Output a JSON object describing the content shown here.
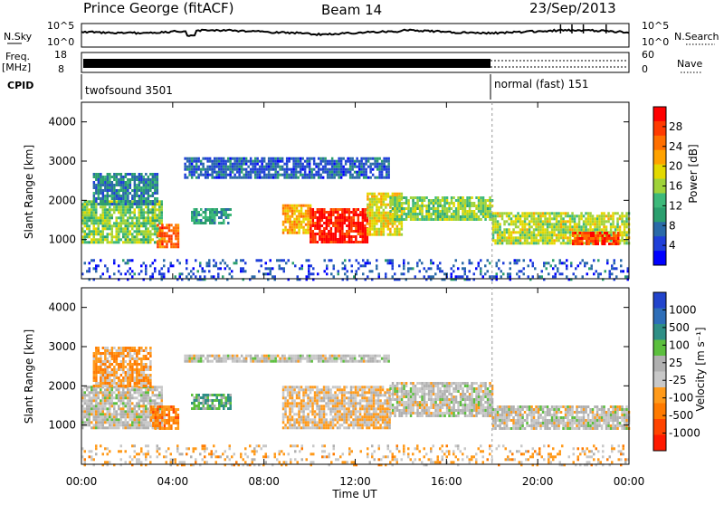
{
  "header": {
    "station": "Prince George (fitACF)",
    "beam": "Beam 14",
    "date": "23/Sep/2013"
  },
  "sky_panel": {
    "left_label": "N.Sky",
    "left_ticks": [
      "10^5",
      "10^0"
    ],
    "right_ticks": [
      "10^5",
      "10^0"
    ],
    "right_label": "N.Search"
  },
  "freq_panel": {
    "left_label_line1": "Freq.",
    "left_label_line2": "[MHz]",
    "left_ticks": [
      "18",
      "8"
    ],
    "right_ticks": [
      "60",
      "0"
    ],
    "right_label": "Nave"
  },
  "cpid_panel": {
    "label": "CPID",
    "modes": [
      {
        "name": "twofsound 3501",
        "start": "00:00",
        "end": "18:00"
      },
      {
        "name": "normal (fast) 151",
        "start": "18:00",
        "end": "24:00"
      }
    ]
  },
  "power_panel": {
    "ylabel": "Slant Range [km]",
    "colorbar_label": "Power [dB]",
    "colorbar_ticks": [
      "28",
      "24",
      "20",
      "16",
      "12",
      "8",
      "4"
    ],
    "colorbar_colors": [
      "#ff0000",
      "#ff3a00",
      "#ff6f00",
      "#ffa200",
      "#e3d900",
      "#9fd33a",
      "#3db97a",
      "#2b9f6e",
      "#2a6aa8",
      "#1f3fd9",
      "#0000ff"
    ]
  },
  "velocity_panel": {
    "ylabel": "Slant Range [km]",
    "colorbar_label": "Velocity [m s⁻¹]",
    "colorbar_ticks": [
      "1000",
      "500",
      "100",
      "25",
      "-25",
      "-100",
      "-500",
      "-1000"
    ],
    "colorbar_colors": [
      "#2244cc",
      "#2e6eb8",
      "#2f8f86",
      "#5cbf3e",
      "#b0b0b0",
      "#c8c8c8",
      "#ff9a1a",
      "#ff7a00",
      "#ff4400",
      "#ff1a00"
    ]
  },
  "x_axis": {
    "title": "Time UT",
    "tick_labels": [
      "00:00",
      "04:00",
      "08:00",
      "12:00",
      "16:00",
      "20:00",
      "00:00"
    ]
  },
  "chart_data": {
    "type": "heatmap",
    "title": "Prince George (fitACF)",
    "x_range": [
      "00:00",
      "24:00"
    ],
    "y_range_km": [
      0,
      4500
    ],
    "y_ticks_km": [
      1000,
      2000,
      3000,
      4000
    ],
    "panels": [
      {
        "name": "Power [dB]",
        "color_range": [
          0,
          30
        ],
        "regions": [
          {
            "t0": 0.0,
            "t1": 3.5,
            "r0": 900,
            "r1": 2000,
            "value": 14
          },
          {
            "t0": 0.5,
            "t1": 3.3,
            "r0": 1900,
            "r1": 2700,
            "value": 8
          },
          {
            "t0": 3.3,
            "t1": 4.2,
            "r0": 800,
            "r1": 1400,
            "value": 24
          },
          {
            "t0": 4.8,
            "t1": 6.5,
            "r0": 1400,
            "r1": 1800,
            "value": 10
          },
          {
            "t0": 4.5,
            "t1": 13.5,
            "r0": 2600,
            "r1": 3100,
            "value": 6
          },
          {
            "t0": 8.8,
            "t1": 10.0,
            "r0": 1200,
            "r1": 1900,
            "value": 20
          },
          {
            "t0": 10.0,
            "t1": 12.5,
            "r0": 900,
            "r1": 1800,
            "value": 28
          },
          {
            "t0": 12.5,
            "t1": 14.0,
            "r0": 1100,
            "r1": 2200,
            "value": 18
          },
          {
            "t0": 13.5,
            "t1": 18.0,
            "r0": 1500,
            "r1": 2100,
            "value": 14
          },
          {
            "t0": 18.0,
            "t1": 24.0,
            "r0": 900,
            "r1": 1700,
            "value": 16
          },
          {
            "t0": 21.5,
            "t1": 23.5,
            "r0": 900,
            "r1": 1200,
            "value": 26
          },
          {
            "t0": 0.0,
            "t1": 24.0,
            "r0": 0,
            "r1": 500,
            "value": 5
          }
        ]
      },
      {
        "name": "Velocity [m s-1]",
        "color_range": [
          -1000,
          1000
        ],
        "regions": [
          {
            "t0": 0.0,
            "t1": 3.5,
            "r0": 900,
            "r1": 2000,
            "value": 0
          },
          {
            "t0": 0.5,
            "t1": 3.0,
            "r0": 2000,
            "r1": 3000,
            "value": -300
          },
          {
            "t0": 3.0,
            "t1": 4.2,
            "r0": 900,
            "r1": 1500,
            "value": -400
          },
          {
            "t0": 4.8,
            "t1": 6.5,
            "r0": 1400,
            "r1": 1800,
            "value": 300
          },
          {
            "t0": 4.5,
            "t1": 13.5,
            "r0": 2600,
            "r1": 2800,
            "value": 0
          },
          {
            "t0": 8.8,
            "t1": 13.5,
            "r0": 900,
            "r1": 2000,
            "value": -150
          },
          {
            "t0": 13.5,
            "t1": 18.0,
            "r0": 1200,
            "r1": 2100,
            "value": 0
          },
          {
            "t0": 18.0,
            "t1": 24.0,
            "r0": 900,
            "r1": 1500,
            "value": 0
          },
          {
            "t0": 0.0,
            "t1": 24.0,
            "r0": 0,
            "r1": 500,
            "value": -200
          }
        ]
      }
    ]
  }
}
